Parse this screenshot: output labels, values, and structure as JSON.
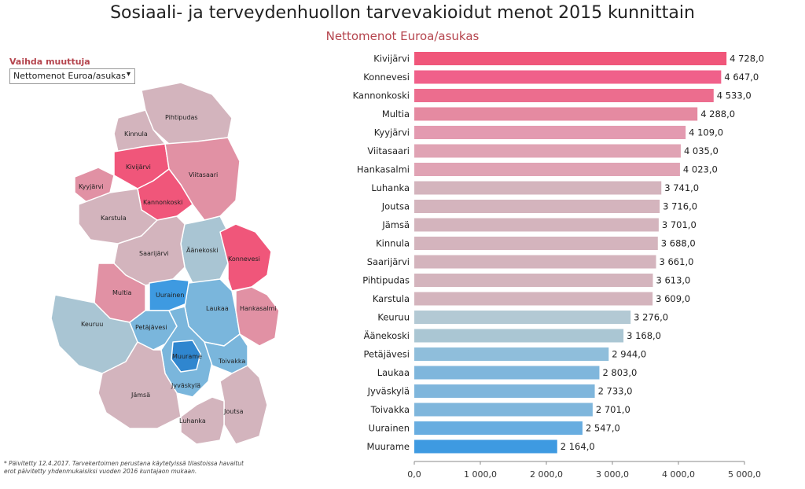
{
  "header": {
    "title": "Sosiaali- ja terveydenhuollon tarvevakioidut menot 2015 kunnittain",
    "subtitle": "Nettomenot Euroa/asukas"
  },
  "controls": {
    "variable_label": "Vaihda muuttuja",
    "variable_selected": "Nettomenot Euroa/asukas",
    "dropdown_icon": "chevron-down-icon"
  },
  "footnote": {
    "line1": "* Päivitetty 12.4.2017. Tarvekertoimen perustana käytetyissä tilastoissa havaitut",
    "line2": "erot päivitetty yhdenmukaisiksi vuoden 2016 kuntajaon mukaan."
  },
  "colors": {
    "high": "#f0567a",
    "mid_high": "#e191a4",
    "mid": "#d3b4bd",
    "low": "#a9c5d3",
    "lower": "#7ab6dc",
    "lowest": "#3e9ae1"
  },
  "map": {
    "labels": [
      "Pihtipudas",
      "Kinnula",
      "Kivijärvi",
      "Viitasaari",
      "Kyyjärvi",
      "Kannonkoski",
      "Karstula",
      "Äänekoski",
      "Konnevesi",
      "Saarijärvi",
      "Uurainen",
      "Multia",
      "Laukaa",
      "Hankasalmi",
      "Keuruu",
      "Petäjävesi",
      "Muurame",
      "Toivakka",
      "Jyväskylä",
      "Jämsä",
      "Joutsa",
      "Luhanka"
    ]
  },
  "chart_data": {
    "type": "bar",
    "orientation": "horizontal",
    "title": "Sosiaali- ja terveydenhuollon tarvevakioidut menot 2015 kunnittain",
    "subtitle": "Nettomenot Euroa/asukas",
    "xlim": [
      0,
      5000
    ],
    "ticks": [
      "0,0",
      "1 000,0",
      "2 000,0",
      "3 000,0",
      "4 000,0",
      "5 000,0"
    ],
    "tick_values": [
      0,
      1000,
      2000,
      3000,
      4000,
      5000
    ],
    "categories": [
      "Kivijärvi",
      "Konnevesi",
      "Kannonkoski",
      "Multia",
      "Kyyjärvi",
      "Viitasaari",
      "Hankasalmi",
      "Luhanka",
      "Joutsa",
      "Jämsä",
      "Kinnula",
      "Saarijärvi",
      "Pihtipudas",
      "Karstula",
      "Keuruu",
      "Äänekoski",
      "Petäjävesi",
      "Laukaa",
      "Jyväskylä",
      "Toivakka",
      "Uurainen",
      "Muurame"
    ],
    "values": [
      4728,
      4647,
      4533,
      4288,
      4109,
      4035,
      4023,
      3741,
      3716,
      3701,
      3688,
      3661,
      3613,
      3609,
      3276,
      3168,
      2944,
      2803,
      2733,
      2701,
      2547,
      2164
    ],
    "value_labels": [
      "4 728,0",
      "4 647,0",
      "4 533,0",
      "4 288,0",
      "4 109,0",
      "4 035,0",
      "4 023,0",
      "3 741,0",
      "3 716,0",
      "3 701,0",
      "3 688,0",
      "3 661,0",
      "3 613,0",
      "3 609,0",
      "3 276,0",
      "3 168,0",
      "2 944,0",
      "2 803,0",
      "2 733,0",
      "2 701,0",
      "2 547,0",
      "2 164,0"
    ],
    "bar_colors": [
      "#f0567a",
      "#f0608a",
      "#ec6d8e",
      "#e58aa1",
      "#e39ab0",
      "#e0a3b4",
      "#e0a3b4",
      "#d4b4bd",
      "#d4b4bd",
      "#d4b4bd",
      "#d4b4bd",
      "#d4b4bd",
      "#d4b4bd",
      "#d4b4bd",
      "#b3c9d4",
      "#aac6d3",
      "#8fbedb",
      "#7fb6dc",
      "#7fb6dc",
      "#7fb6dc",
      "#68ade0",
      "#3e9ae1"
    ],
    "grid": false
  }
}
